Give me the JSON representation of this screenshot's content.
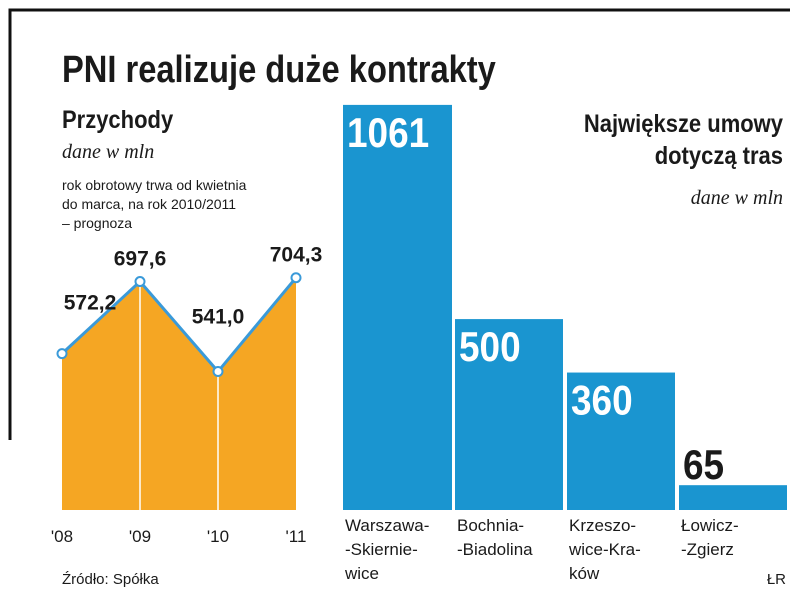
{
  "title": "PNI realizuje duże kontrakty",
  "source": "Źródło: Spółka",
  "credit": "ŁR",
  "chart_data": [
    {
      "type": "area",
      "title": "Przychody",
      "subtitle": "dane w mln",
      "note": [
        "rok obrotowy trwa od kwietnia",
        "do marca, na rok 2010/2011",
        "– prognoza"
      ],
      "categories": [
        "'08",
        "'09",
        "'10",
        "'11"
      ],
      "values": [
        572.2,
        697.6,
        541.0,
        704.3
      ],
      "value_labels": [
        "572,2",
        "697,6",
        "541,0",
        "704,3"
      ],
      "color": "#f5a623",
      "line_color": "#3a9ad9",
      "ylim": [
        300,
        850
      ]
    },
    {
      "type": "bar",
      "title": [
        "Największe umowy",
        "dotyczą tras"
      ],
      "subtitle": "dane w mln",
      "categories": [
        [
          "Warszawa-",
          "-Skiernie-",
          "wice"
        ],
        [
          "Bochnia-",
          "-Biadolina"
        ],
        [
          "Krzeszo-",
          "wice-Kra-",
          "ków"
        ],
        [
          "Łowicz-",
          "-Zgierz"
        ]
      ],
      "values": [
        1061,
        500,
        360,
        65
      ],
      "color": "#1a95d0",
      "ylim": [
        0,
        1100
      ]
    }
  ]
}
